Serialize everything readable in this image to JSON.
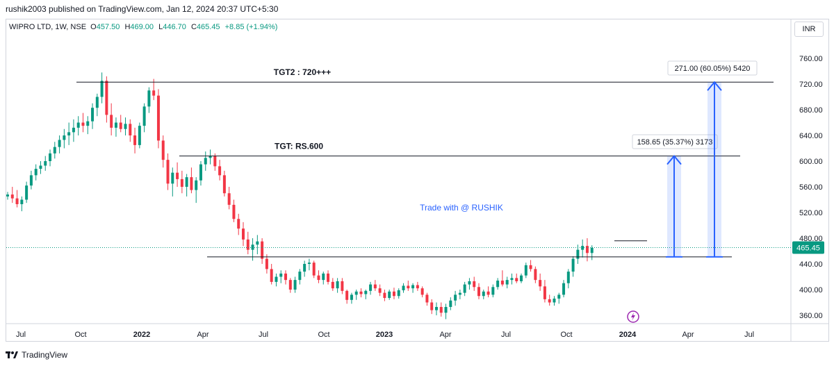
{
  "header": {
    "published_by": "rushik2003 published on TradingView.com, Jan 12, 2024 20:37 UTC+5:30"
  },
  "legend": {
    "symbol": "WIPRO LTD, 1W, NSE",
    "open_label": "O",
    "open": "457.50",
    "high_label": "H",
    "high": "469.00",
    "low_label": "L",
    "low": "446.70",
    "close_label": "C",
    "close": "465.45",
    "change": "+8.85 (+1.94%)"
  },
  "currency_button": "INR",
  "footer": {
    "brand": "TradingView"
  },
  "colors": {
    "up": "#089981",
    "down": "#f23645",
    "measure": "#2962ff",
    "annotation": "#2962ff"
  },
  "chart_data": {
    "type": "candlestick",
    "symbol": "WIPRO LTD",
    "timeframe": "1W",
    "exchange": "NSE",
    "x_tick_labels": [
      "Jul",
      "Oct",
      "2022",
      "Apr",
      "Jul",
      "Oct",
      "2023",
      "Apr",
      "Jul",
      "Oct",
      "2024",
      "Apr",
      "Jul"
    ],
    "y_tick_labels": [
      "760.00",
      "720.00",
      "680.00",
      "640.00",
      "600.00",
      "560.00",
      "520.00",
      "480.00",
      "440.00",
      "400.00",
      "360.00"
    ],
    "ylim": [
      340,
      780
    ],
    "grid": false,
    "last_price_label": "465.45",
    "horizontal_levels": [
      {
        "label": "TGT2 : 720+++",
        "price": 723
      },
      {
        "label": "TGT: RS.600",
        "price": 608
      },
      {
        "label": "",
        "price": 451
      },
      {
        "label": "",
        "price": 476
      }
    ],
    "measurements": [
      {
        "label": "158.65 (35.37%) 3173",
        "from": 451,
        "to": 608
      },
      {
        "label": "271.00 (60.05%) 5420",
        "from": 451,
        "to": 723
      }
    ],
    "watermark_text": "Trade with @ RUSHIK",
    "candles": [
      [
        545,
        552,
        540,
        548
      ],
      [
        548,
        560,
        535,
        542
      ],
      [
        542,
        555,
        528,
        533
      ],
      [
        533,
        545,
        522,
        540
      ],
      [
        540,
        568,
        535,
        562
      ],
      [
        562,
        585,
        556,
        578
      ],
      [
        578,
        595,
        570,
        588
      ],
      [
        588,
        600,
        580,
        593
      ],
      [
        593,
        608,
        585,
        600
      ],
      [
        600,
        618,
        592,
        612
      ],
      [
        612,
        630,
        604,
        622
      ],
      [
        622,
        640,
        612,
        633
      ],
      [
        633,
        650,
        620,
        640
      ],
      [
        640,
        660,
        625,
        645
      ],
      [
        645,
        665,
        630,
        652
      ],
      [
        652,
        670,
        640,
        660
      ],
      [
        660,
        675,
        645,
        655
      ],
      [
        655,
        670,
        642,
        662
      ],
      [
        662,
        690,
        650,
        683
      ],
      [
        683,
        705,
        670,
        700
      ],
      [
        700,
        738,
        690,
        725
      ],
      [
        725,
        732,
        660,
        672
      ],
      [
        672,
        690,
        640,
        652
      ],
      [
        652,
        668,
        638,
        660
      ],
      [
        660,
        672,
        645,
        650
      ],
      [
        650,
        668,
        640,
        658
      ],
      [
        658,
        665,
        630,
        640
      ],
      [
        640,
        652,
        612,
        625
      ],
      [
        625,
        660,
        620,
        655
      ],
      [
        655,
        690,
        645,
        685
      ],
      [
        685,
        715,
        675,
        710
      ],
      [
        710,
        728,
        695,
        702
      ],
      [
        702,
        712,
        620,
        632
      ],
      [
        632,
        640,
        590,
        602
      ],
      [
        602,
        612,
        555,
        565
      ],
      [
        565,
        590,
        545,
        582
      ],
      [
        582,
        598,
        560,
        572
      ],
      [
        572,
        585,
        550,
        560
      ],
      [
        560,
        580,
        545,
        575
      ],
      [
        575,
        590,
        550,
        555
      ],
      [
        555,
        575,
        535,
        570
      ],
      [
        570,
        600,
        562,
        595
      ],
      [
        595,
        615,
        585,
        605
      ],
      [
        605,
        618,
        595,
        608
      ],
      [
        608,
        612,
        585,
        592
      ],
      [
        592,
        602,
        570,
        578
      ],
      [
        578,
        585,
        545,
        550
      ],
      [
        550,
        560,
        525,
        532
      ],
      [
        532,
        540,
        505,
        510
      ],
      [
        510,
        518,
        485,
        495
      ],
      [
        495,
        505,
        468,
        478
      ],
      [
        478,
        490,
        455,
        462
      ],
      [
        462,
        480,
        445,
        470
      ],
      [
        470,
        485,
        455,
        475
      ],
      [
        475,
        480,
        440,
        448
      ],
      [
        448,
        455,
        425,
        432
      ],
      [
        432,
        440,
        408,
        412
      ],
      [
        412,
        425,
        405,
        420
      ],
      [
        420,
        430,
        410,
        425
      ],
      [
        425,
        430,
        408,
        415
      ],
      [
        415,
        418,
        395,
        400
      ],
      [
        400,
        420,
        395,
        415
      ],
      [
        415,
        432,
        408,
        428
      ],
      [
        428,
        445,
        420,
        440
      ],
      [
        440,
        448,
        430,
        442
      ],
      [
        442,
        445,
        418,
        422
      ],
      [
        422,
        430,
        410,
        415
      ],
      [
        415,
        428,
        408,
        425
      ],
      [
        425,
        430,
        408,
        412
      ],
      [
        412,
        418,
        398,
        402
      ],
      [
        402,
        418,
        395,
        413
      ],
      [
        413,
        418,
        393,
        398
      ],
      [
        398,
        400,
        378,
        384
      ],
      [
        384,
        395,
        378,
        392
      ],
      [
        392,
        400,
        384,
        397
      ],
      [
        397,
        402,
        388,
        393
      ],
      [
        393,
        400,
        385,
        398
      ],
      [
        398,
        412,
        392,
        408
      ],
      [
        408,
        415,
        398,
        402
      ],
      [
        402,
        408,
        390,
        395
      ],
      [
        395,
        400,
        382,
        387
      ],
      [
        387,
        400,
        384,
        397
      ],
      [
        397,
        403,
        385,
        390
      ],
      [
        390,
        402,
        386,
        399
      ],
      [
        399,
        410,
        395,
        406
      ],
      [
        406,
        414,
        398,
        402
      ],
      [
        402,
        410,
        395,
        407
      ],
      [
        407,
        412,
        398,
        402
      ],
      [
        402,
        405,
        388,
        392
      ],
      [
        392,
        395,
        375,
        380
      ],
      [
        380,
        385,
        362,
        368
      ],
      [
        368,
        380,
        360,
        373
      ],
      [
        373,
        380,
        358,
        364
      ],
      [
        364,
        378,
        354,
        373
      ],
      [
        373,
        388,
        368,
        383
      ],
      [
        383,
        398,
        375,
        392
      ],
      [
        392,
        400,
        385,
        395
      ],
      [
        395,
        412,
        390,
        408
      ],
      [
        408,
        418,
        400,
        413
      ],
      [
        413,
        420,
        398,
        404
      ],
      [
        404,
        410,
        385,
        390
      ],
      [
        390,
        400,
        385,
        397
      ],
      [
        397,
        405,
        388,
        392
      ],
      [
        392,
        408,
        388,
        404
      ],
      [
        404,
        418,
        400,
        414
      ],
      [
        414,
        430,
        405,
        408
      ],
      [
        408,
        420,
        402,
        415
      ],
      [
        415,
        425,
        408,
        418
      ],
      [
        418,
        425,
        410,
        413
      ],
      [
        413,
        425,
        410,
        422
      ],
      [
        422,
        442,
        418,
        438
      ],
      [
        438,
        446,
        428,
        432
      ],
      [
        432,
        436,
        410,
        415
      ],
      [
        415,
        425,
        398,
        405
      ],
      [
        405,
        415,
        380,
        385
      ],
      [
        385,
        392,
        375,
        380
      ],
      [
        380,
        390,
        375,
        386
      ],
      [
        386,
        395,
        378,
        392
      ],
      [
        392,
        415,
        388,
        410
      ],
      [
        410,
        432,
        402,
        428
      ],
      [
        428,
        452,
        420,
        448
      ],
      [
        448,
        470,
        440,
        462
      ],
      [
        462,
        478,
        450,
        468
      ],
      [
        468,
        480,
        444,
        457
      ],
      [
        457,
        469,
        446,
        465
      ]
    ]
  }
}
